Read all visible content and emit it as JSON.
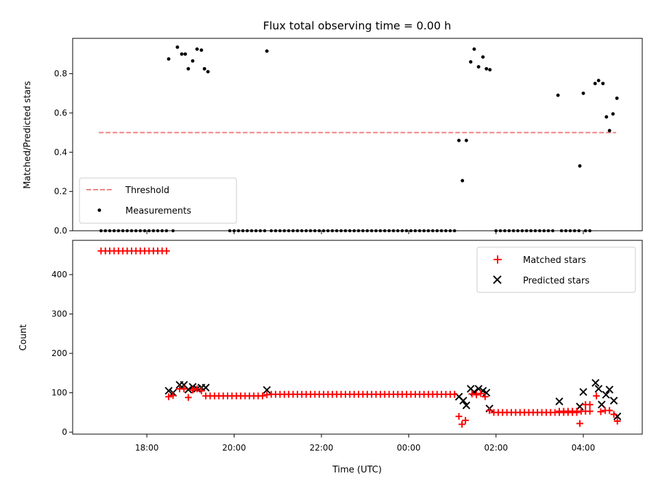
{
  "chart_data": [
    {
      "type": "scatter",
      "title": "Flux total observing time = 0.00 h",
      "xlabel": "",
      "ylabel": "Matched/Predicted stars",
      "ylim": [
        0,
        0.98
      ],
      "yticks": [
        "0.0",
        "0.2",
        "0.4",
        "0.6",
        "0.8"
      ],
      "xlim_hours_utc": [
        16.3,
        29.35
      ],
      "legend_position": "lower-left",
      "threshold": {
        "name": "Threshold",
        "value": 0.5,
        "x_range": [
          16.9,
          28.75
        ],
        "color": "#f08080",
        "style": "dashed"
      },
      "measurements": {
        "name": "Measurements",
        "color": "#000000",
        "nonzero_points": [
          [
            18.5,
            0.875
          ],
          [
            18.7,
            0.935
          ],
          [
            18.8,
            0.9
          ],
          [
            18.88,
            0.9
          ],
          [
            18.95,
            0.825
          ],
          [
            19.05,
            0.865
          ],
          [
            19.15,
            0.925
          ],
          [
            19.25,
            0.92
          ],
          [
            19.32,
            0.825
          ],
          [
            19.4,
            0.81
          ],
          [
            20.75,
            0.915
          ],
          [
            25.15,
            0.46
          ],
          [
            25.23,
            0.255
          ],
          [
            25.32,
            0.46
          ],
          [
            25.42,
            0.86
          ],
          [
            25.5,
            0.925
          ],
          [
            25.6,
            0.835
          ],
          [
            25.7,
            0.885
          ],
          [
            25.78,
            0.825
          ],
          [
            25.86,
            0.82
          ],
          [
            27.42,
            0.69
          ],
          [
            27.92,
            0.33
          ],
          [
            28.0,
            0.7
          ],
          [
            28.27,
            0.75
          ],
          [
            28.35,
            0.765
          ],
          [
            28.45,
            0.75
          ],
          [
            28.53,
            0.58
          ],
          [
            28.6,
            0.51
          ],
          [
            28.68,
            0.595
          ],
          [
            28.77,
            0.675
          ]
        ],
        "zero_ranges": [
          [
            16.95,
            18.45
          ],
          [
            18.6,
            18.6
          ],
          [
            19.9,
            20.7
          ],
          [
            20.85,
            25.1
          ],
          [
            26.0,
            27.3
          ],
          [
            27.5,
            27.95
          ],
          [
            28.05,
            28.18
          ]
        ],
        "zero_step_hours": 0.1
      }
    },
    {
      "type": "scatter",
      "title": "",
      "xlabel": "Time (UTC)",
      "ylabel": "Count",
      "ylim": [
        -5,
        487
      ],
      "yticks": [
        "0",
        "100",
        "200",
        "300",
        "400"
      ],
      "xticks": [
        "18:00",
        "20:00",
        "22:00",
        "00:00",
        "02:00",
        "04:00"
      ],
      "xtick_hours": [
        18,
        20,
        22,
        24,
        26,
        28
      ],
      "xlim_hours_utc": [
        16.3,
        29.35
      ],
      "legend_position": "upper-right",
      "series": [
        {
          "name": "Matched stars",
          "marker": "plus",
          "color": "#ff0000",
          "runs": [
            {
              "from": 16.95,
              "to": 18.45,
              "step": 0.1,
              "value": 460
            },
            {
              "from": 19.35,
              "to": 20.7,
              "step": 0.1,
              "value": 92
            },
            {
              "from": 20.85,
              "to": 25.1,
              "step": 0.1,
              "value": 96
            },
            {
              "from": 25.95,
              "to": 27.9,
              "step": 0.1,
              "value": 50
            },
            {
              "from": 27.45,
              "to": 28.15,
              "step": 0.1,
              "value": 53
            }
          ],
          "points": [
            [
              18.5,
              90
            ],
            [
              18.6,
              93
            ],
            [
              18.75,
              110
            ],
            [
              18.85,
              110
            ],
            [
              18.95,
              88
            ],
            [
              19.05,
              107
            ],
            [
              19.15,
              110
            ],
            [
              19.25,
              105
            ],
            [
              20.75,
              95
            ],
            [
              25.15,
              40
            ],
            [
              25.22,
              20
            ],
            [
              25.3,
              30
            ],
            [
              25.45,
              97
            ],
            [
              25.55,
              95
            ],
            [
              25.65,
              98
            ],
            [
              25.75,
              90
            ],
            [
              25.85,
              55
            ],
            [
              27.92,
              22
            ],
            [
              28.05,
              70
            ],
            [
              28.15,
              70
            ],
            [
              28.3,
              92
            ],
            [
              28.4,
              52
            ],
            [
              28.5,
              55
            ],
            [
              28.6,
              55
            ],
            [
              28.7,
              45
            ],
            [
              28.78,
              28
            ]
          ]
        },
        {
          "name": "Predicted stars",
          "marker": "x",
          "color": "#000000",
          "points": [
            [
              18.5,
              105
            ],
            [
              18.6,
              100
            ],
            [
              18.75,
              120
            ],
            [
              18.85,
              120
            ],
            [
              18.95,
              108
            ],
            [
              19.05,
              115
            ],
            [
              19.15,
              110
            ],
            [
              19.25,
              113
            ],
            [
              19.35,
              113
            ],
            [
              20.75,
              107
            ],
            [
              25.15,
              90
            ],
            [
              25.25,
              80
            ],
            [
              25.32,
              68
            ],
            [
              25.42,
              110
            ],
            [
              25.5,
              102
            ],
            [
              25.6,
              110
            ],
            [
              25.7,
              105
            ],
            [
              25.78,
              100
            ],
            [
              25.85,
              60
            ],
            [
              27.45,
              78
            ],
            [
              27.92,
              65
            ],
            [
              28.0,
              102
            ],
            [
              28.28,
              125
            ],
            [
              28.35,
              110
            ],
            [
              28.42,
              70
            ],
            [
              28.52,
              95
            ],
            [
              28.6,
              108
            ],
            [
              28.7,
              80
            ],
            [
              28.78,
              40
            ]
          ]
        }
      ]
    }
  ]
}
